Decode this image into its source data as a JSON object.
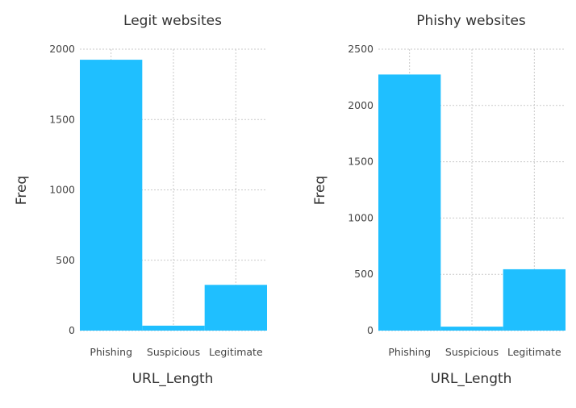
{
  "chart_data": [
    {
      "type": "bar",
      "title": "Legit websites",
      "xlabel": "URL_Length",
      "ylabel": "Freq",
      "categories": [
        "Phishing",
        "Suspicious",
        "Legitimate"
      ],
      "values": [
        1925,
        35,
        325
      ],
      "ylim": [
        0,
        2000
      ],
      "yticks": [
        0,
        500,
        1000,
        1500,
        2000
      ],
      "bar_color": "#1fbfff",
      "grid": true
    },
    {
      "type": "bar",
      "title": "Phishy websites",
      "xlabel": "URL_Length",
      "ylabel": "Freq",
      "categories": [
        "Phishing",
        "Suspicious",
        "Legitimate"
      ],
      "values": [
        2275,
        35,
        545
      ],
      "ylim": [
        0,
        2500
      ],
      "yticks": [
        0,
        500,
        1000,
        1500,
        2000,
        2500
      ],
      "bar_color": "#1fbfff",
      "grid": true
    }
  ]
}
